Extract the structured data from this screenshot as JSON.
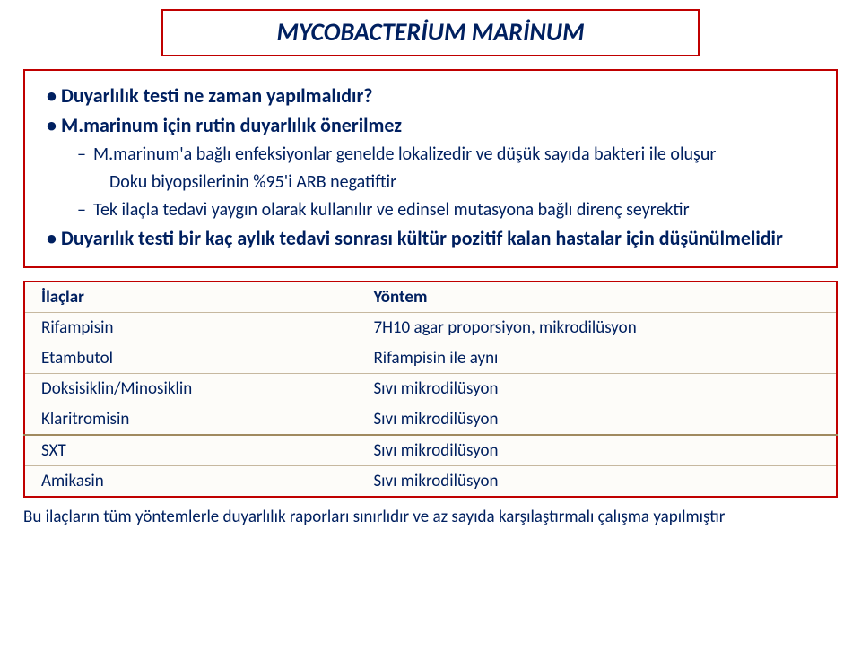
{
  "title": "MYCOBACTERİUM MARİNUM",
  "colors": {
    "border": "#c00000",
    "text": "#002060",
    "row_border": "#c6b8a0",
    "section_divider": "#a08a60",
    "row_bg": "#fdfcf9",
    "page_bg": "#ffffff"
  },
  "typography": {
    "title_fontsize": 28,
    "title_weight": "bold",
    "title_style": "italic",
    "body_fontsize": 20,
    "table_fontsize": 19,
    "footer_fontsize": 19,
    "font_family": "Calibri"
  },
  "bullets": [
    {
      "level": 1,
      "text": "Duyarlılık testi ne zaman yapılmalıdır?"
    },
    {
      "level": 1,
      "text": "M.marinum için rutin duyarlılık önerilmez"
    },
    {
      "level": 2,
      "text": "M.marinum'a bağlı enfeksiyonlar genelde lokalizedir ve düşük sayıda bakteri ile oluşur"
    },
    {
      "level": 3,
      "text": "Doku biyopsilerinin %95'i ARB negatiftir"
    },
    {
      "level": 2,
      "text": "Tek ilaçla tedavi yaygın olarak kullanılır ve edinsel mutasyona bağlı direnç seyrektir"
    },
    {
      "level": 1,
      "text": "Duyarılık testi bir kaç aylık  tedavi sonrası kültür pozitif kalan hastalar için düşünülmelidir"
    }
  ],
  "table": {
    "columns": [
      "İlaçlar",
      "Yöntem"
    ],
    "rows": [
      [
        "Rifampisin",
        "7H10 agar proporsiyon, mikrodilüsyon"
      ],
      [
        "Etambutol",
        "Rifampisin ile aynı"
      ],
      [
        "Doksisiklin/Minosiklin",
        "Sıvı mikrodilüsyon"
      ],
      [
        "Klaritromisin",
        "Sıvı mikrodilüsyon"
      ],
      [
        "SXT",
        "Sıvı mikrodilüsyon"
      ],
      [
        "Amikasin",
        "Sıvı mikrodilüsyon"
      ]
    ]
  },
  "footer": "Bu ilaçların tüm yöntemlerle duyarlılık raporları sınırlıdır ve az sayıda karşılaştırmalı çalışma yapılmıştır"
}
